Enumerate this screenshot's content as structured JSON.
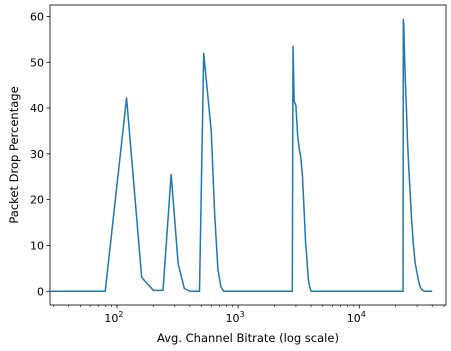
{
  "chart_data": {
    "type": "line",
    "title": "",
    "xlabel": "Avg. Channel Bitrate (log scale)",
    "ylabel": "Packet Drop Percentage",
    "x_scale": "log",
    "xlim": [
      28,
      52000
    ],
    "ylim": [
      -3,
      62.5
    ],
    "x_ticks": [
      {
        "value": 100,
        "base": "10",
        "exp": "2"
      },
      {
        "value": 1000,
        "base": "10",
        "exp": "3"
      },
      {
        "value": 10000,
        "base": "10",
        "exp": "4"
      }
    ],
    "y_ticks": [
      0,
      10,
      20,
      30,
      40,
      50,
      60
    ],
    "grid": false,
    "legend": "none",
    "line_color": "#1f77b4",
    "series": [
      {
        "x": [
          28,
          80,
          120,
          160,
          200,
          240,
          280,
          320,
          360,
          400,
          480,
          520,
          600,
          640,
          680,
          720,
          760,
          2800,
          2840,
          2900,
          3000,
          3100,
          3200,
          3300,
          3400,
          3500,
          3600,
          3700,
          3800,
          3900,
          4000,
          4200,
          23000,
          23100,
          23300,
          23600,
          24000,
          24500,
          25000,
          25500,
          26000,
          26500,
          27000,
          27500,
          28000,
          28500,
          29000,
          30000,
          31000,
          32000,
          33000,
          34000,
          35000,
          37000,
          40000
        ],
        "y": [
          0,
          0,
          42.2,
          3,
          0.2,
          0.2,
          25.5,
          6,
          0.6,
          0,
          0,
          51.9,
          35,
          17,
          5,
          1,
          0,
          0,
          53.5,
          41.5,
          40.5,
          34,
          31,
          29,
          25,
          18,
          11,
          7,
          2.5,
          1,
          0,
          0,
          0,
          59.3,
          58.5,
          52,
          46,
          40,
          33,
          28,
          24,
          20,
          16,
          13,
          10,
          8,
          6,
          4,
          2,
          0.8,
          0.3,
          0.1,
          0,
          0,
          0
        ]
      }
    ]
  }
}
